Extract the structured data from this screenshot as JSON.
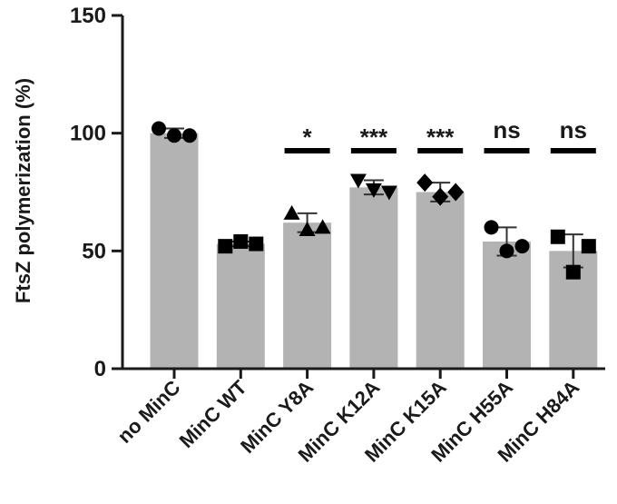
{
  "chart_data": {
    "type": "bar",
    "title": "",
    "xlabel": "",
    "ylabel": "FtsZ polymerization (%)",
    "ylim": [
      0,
      150
    ],
    "yticks": [
      0,
      50,
      100,
      150
    ],
    "grid": false,
    "categories": [
      "no MinC",
      "MinC WT",
      "MinC Y8A",
      "MinC K12A",
      "MinC K15A",
      "MinC H55A",
      "MinC H84A"
    ],
    "values": [
      100,
      53,
      62,
      77,
      75,
      54,
      50
    ],
    "error": [
      2,
      1,
      4,
      3,
      4,
      6,
      7
    ],
    "points": [
      {
        "marker": "circle",
        "values": [
          102,
          99,
          99
        ]
      },
      {
        "marker": "square",
        "values": [
          52,
          54,
          53
        ]
      },
      {
        "marker": "triangle-up",
        "values": [
          66,
          59,
          60
        ]
      },
      {
        "marker": "triangle-down",
        "values": [
          80,
          76,
          75
        ]
      },
      {
        "marker": "diamond",
        "values": [
          79,
          73,
          75
        ]
      },
      {
        "marker": "circle",
        "values": [
          60,
          50,
          52
        ]
      },
      {
        "marker": "square",
        "values": [
          56,
          41,
          52
        ]
      }
    ],
    "significance": [
      "",
      "",
      "*",
      "***",
      "***",
      "ns",
      "ns"
    ],
    "bar_color": "#b3b3b3",
    "marker_color": "#000000"
  }
}
